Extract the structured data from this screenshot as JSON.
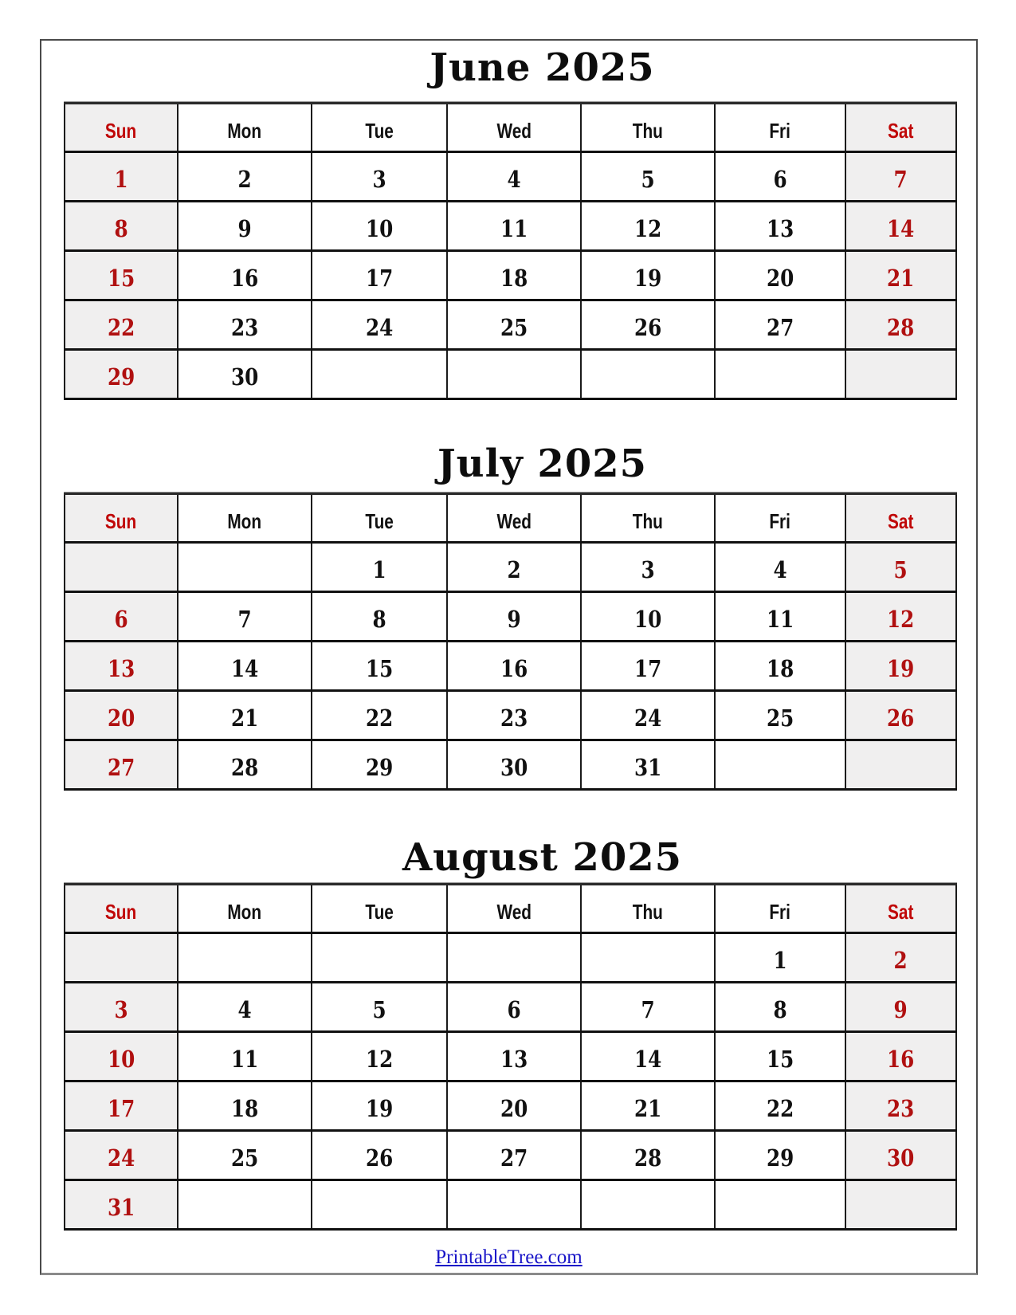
{
  "weekdays": [
    "Sun",
    "Mon",
    "Tue",
    "Wed",
    "Thu",
    "Fri",
    "Sat"
  ],
  "months": [
    {
      "title": "June 2025",
      "weeks": [
        [
          "1",
          "2",
          "3",
          "4",
          "5",
          "6",
          "7"
        ],
        [
          "8",
          "9",
          "10",
          "11",
          "12",
          "13",
          "14"
        ],
        [
          "15",
          "16",
          "17",
          "18",
          "19",
          "20",
          "21"
        ],
        [
          "22",
          "23",
          "24",
          "25",
          "26",
          "27",
          "28"
        ],
        [
          "29",
          "30",
          "",
          "",
          "",
          "",
          ""
        ]
      ]
    },
    {
      "title": "July 2025",
      "weeks": [
        [
          "",
          "",
          "1",
          "2",
          "3",
          "4",
          "5"
        ],
        [
          "6",
          "7",
          "8",
          "9",
          "10",
          "11",
          "12"
        ],
        [
          "13",
          "14",
          "15",
          "16",
          "17",
          "18",
          "19"
        ],
        [
          "20",
          "21",
          "22",
          "23",
          "24",
          "25",
          "26"
        ],
        [
          "27",
          "28",
          "29",
          "30",
          "31",
          "",
          ""
        ]
      ]
    },
    {
      "title": "August 2025",
      "weeks": [
        [
          "",
          "",
          "",
          "",
          "",
          "1",
          "2"
        ],
        [
          "3",
          "4",
          "5",
          "6",
          "7",
          "8",
          "9"
        ],
        [
          "10",
          "11",
          "12",
          "13",
          "14",
          "15",
          "16"
        ],
        [
          "17",
          "18",
          "19",
          "20",
          "21",
          "22",
          "23"
        ],
        [
          "24",
          "25",
          "26",
          "27",
          "28",
          "29",
          "30"
        ],
        [
          "31",
          "",
          "",
          "",
          "",
          "",
          ""
        ]
      ]
    }
  ],
  "footer": {
    "link_text": "PrintableTree.com"
  },
  "colors": {
    "weekend_header_text": "#c00808",
    "weekend_number_text": "#b01010",
    "weekend_cell_bg": "#f0efef",
    "grid_line": "#1a1a1a",
    "title_text": "#0d0d0d",
    "footer_link": "#1814c8",
    "page_border": "#4a4a4a"
  }
}
